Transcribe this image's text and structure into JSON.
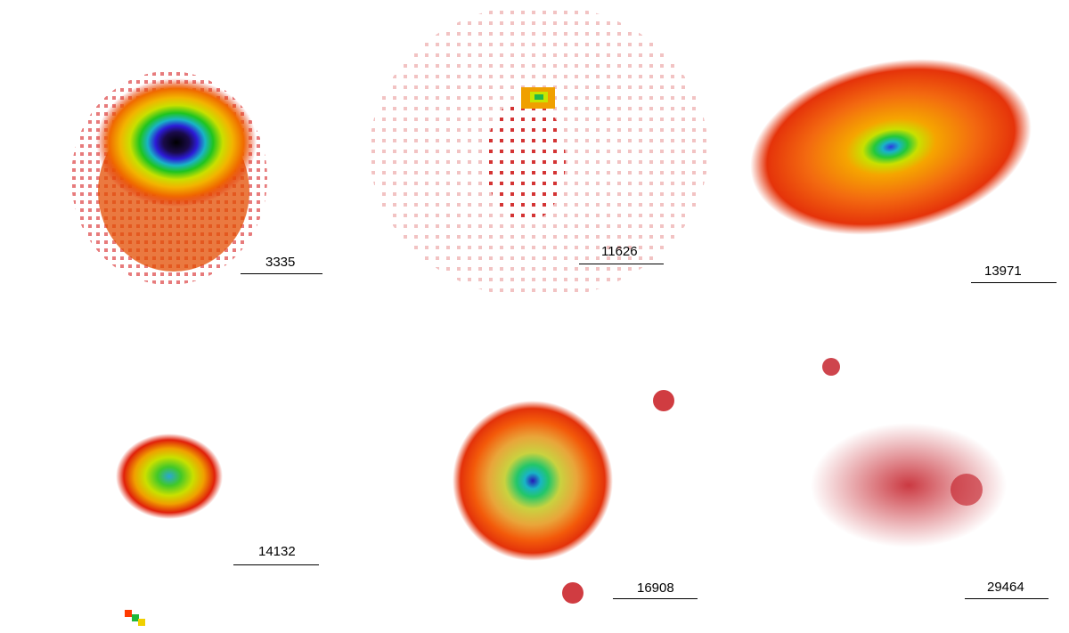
{
  "panels": [
    {
      "label": "3335",
      "colors": {
        "core": "#000000",
        "inner": "#2c1bd6",
        "mid": "#1fc41f",
        "outer": "#f2d700",
        "halo": "#e01a00"
      }
    },
    {
      "label": "11626",
      "colors": {
        "core": "#c8e600",
        "halo": "#d81a00"
      }
    },
    {
      "label": "13971",
      "colors": {
        "core": "#2c3be0",
        "mid": "#24c83a",
        "outer": "#f5a500",
        "halo": "#e5330a"
      }
    },
    {
      "label": "14132",
      "colors": {
        "core": "#2aa6d6",
        "mid": "#41c829",
        "outer": "#f0c000",
        "halo": "#e0200a"
      }
    },
    {
      "label": "16908",
      "colors": {
        "core": "#2518b8",
        "mid": "#22c66a",
        "outer": "#e9c23a",
        "halo": "#e3320a"
      }
    },
    {
      "label": "29464",
      "colors": {
        "halo": "#c21620"
      }
    }
  ]
}
